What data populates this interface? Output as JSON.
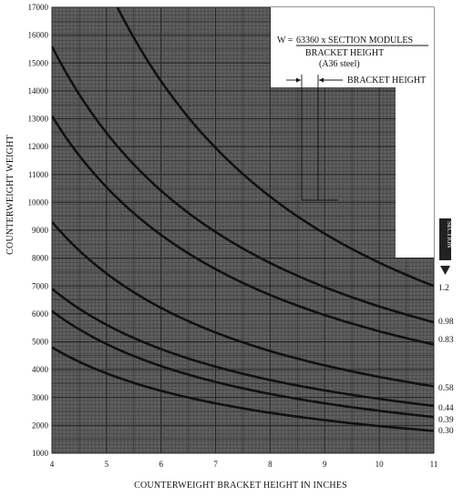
{
  "chart_data": {
    "type": "line",
    "title": "",
    "xlabel": "COUNTERWEIGHT BRACKET HEIGHT IN INCHES",
    "ylabel": "COUNTERWEIGHT WEIGHT",
    "xlim": [
      4,
      11
    ],
    "ylim": [
      1000,
      17000
    ],
    "x_ticks": [
      4,
      5,
      6,
      7,
      8,
      9,
      10,
      11
    ],
    "y_ticks": [
      1000,
      2000,
      3000,
      4000,
      5000,
      6000,
      7000,
      8000,
      9000,
      10000,
      11000,
      12000,
      13000,
      14000,
      15000,
      16000,
      17000
    ],
    "grid": true,
    "legend": "series labels at right edge",
    "formula": {
      "prefix": "W = ",
      "numerator": "63360 x SECTION  MODULES",
      "denominator": "BRACKET HEIGHT",
      "note": "(A36 steel)",
      "dimension_label": "BRACKET HEIGHT"
    },
    "arrow_label": "SECTION",
    "series": [
      {
        "name": "1.2",
        "points": [
          [
            5.2,
            17000
          ],
          [
            11,
            7000
          ]
        ]
      },
      {
        "name": "0.98",
        "points": [
          [
            4,
            15600
          ],
          [
            11,
            5700
          ]
        ]
      },
      {
        "name": "0.83",
        "points": [
          [
            4,
            13100
          ],
          [
            11,
            4900
          ]
        ]
      },
      {
        "name": "0.58",
        "points": [
          [
            4,
            9300
          ],
          [
            11,
            3400
          ]
        ]
      },
      {
        "name": "0.44",
        "points": [
          [
            4,
            6900
          ],
          [
            11,
            2700
          ]
        ]
      },
      {
        "name": "0.39",
        "points": [
          [
            4,
            6100
          ],
          [
            11,
            2300
          ]
        ]
      },
      {
        "name": "0.30",
        "points": [
          [
            4,
            4800
          ],
          [
            11,
            1800
          ]
        ]
      }
    ]
  },
  "colors": {
    "plot_fill": "#5e5e5e",
    "grid_fine": "#454545",
    "grid_major": "#262626",
    "curve": "#111111",
    "paper": "#ffffff"
  }
}
